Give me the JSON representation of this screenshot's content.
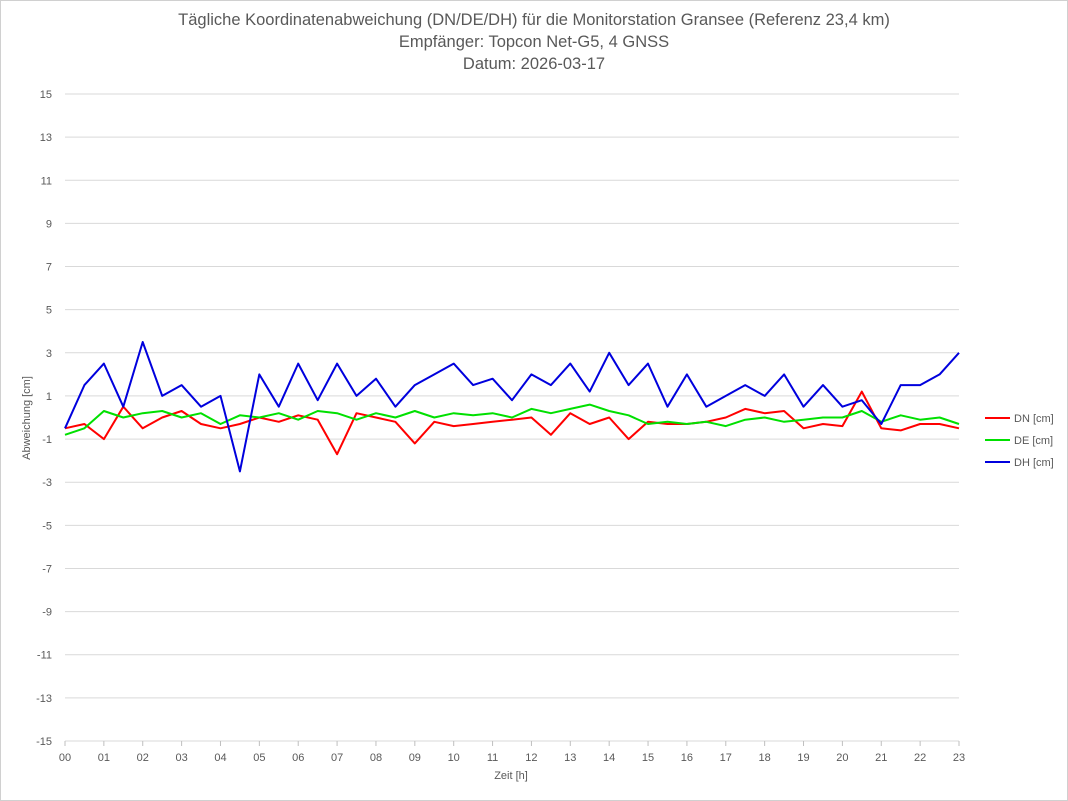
{
  "chart_data": {
    "type": "line",
    "title": "Tägliche Koordinatenabweichung (DN/DE/DH) für die Monitorstation Gransee (Referenz 23,4 km)",
    "subtitle1": "Empfänger: Topcon Net-G5, 4 GNSS",
    "subtitle2": "Datum: 2026-03-17",
    "xlabel": "Zeit [h]",
    "ylabel": "Abweichung [cm]",
    "xlim": [
      0,
      23
    ],
    "ylim": [
      -15,
      15
    ],
    "x_ticks": [
      "00",
      "01",
      "02",
      "03",
      "04",
      "05",
      "06",
      "07",
      "08",
      "09",
      "10",
      "11",
      "12",
      "13",
      "14",
      "15",
      "16",
      "17",
      "18",
      "19",
      "20",
      "21",
      "22",
      "23"
    ],
    "y_ticks": [
      15,
      13,
      11,
      9,
      7,
      5,
      3,
      1,
      -1,
      -3,
      -5,
      -7,
      -9,
      -11,
      -13,
      -15
    ],
    "legend_position": "right",
    "series": [
      {
        "name": "DN [cm]",
        "color": "#ff0000",
        "x": [
          0,
          0.5,
          1,
          1.5,
          2,
          2.5,
          3,
          3.5,
          4,
          4.5,
          5,
          5.5,
          6,
          6.5,
          7,
          7.5,
          8,
          8.5,
          9,
          9.5,
          10,
          10.5,
          11,
          11.5,
          12,
          12.5,
          13,
          13.5,
          14,
          14.5,
          15,
          15.5,
          16,
          16.5,
          17,
          17.5,
          18,
          18.5,
          19,
          19.5,
          20,
          20.5,
          21,
          21.5,
          22,
          22.5,
          23
        ],
        "values": [
          -0.5,
          -0.3,
          -1.0,
          0.5,
          -0.5,
          0.0,
          0.3,
          -0.3,
          -0.5,
          -0.3,
          0.0,
          -0.2,
          0.1,
          -0.1,
          -1.7,
          0.2,
          0.0,
          -0.2,
          -1.2,
          -0.2,
          -0.4,
          -0.3,
          -0.2,
          -0.1,
          0.0,
          -0.8,
          0.2,
          -0.3,
          0.0,
          -1.0,
          -0.2,
          -0.3,
          -0.3,
          -0.2,
          0.0,
          0.4,
          0.2,
          0.3,
          -0.5,
          -0.3,
          -0.4,
          1.2,
          -0.5,
          -0.6,
          -0.3,
          -0.3,
          -0.5
        ]
      },
      {
        "name": "DE [cm]",
        "color": "#00e000",
        "x": [
          0,
          0.5,
          1,
          1.5,
          2,
          2.5,
          3,
          3.5,
          4,
          4.5,
          5,
          5.5,
          6,
          6.5,
          7,
          7.5,
          8,
          8.5,
          9,
          9.5,
          10,
          10.5,
          11,
          11.5,
          12,
          12.5,
          13,
          13.5,
          14,
          14.5,
          15,
          15.5,
          16,
          16.5,
          17,
          17.5,
          18,
          18.5,
          19,
          19.5,
          20,
          20.5,
          21,
          21.5,
          22,
          22.5,
          23
        ],
        "values": [
          -0.8,
          -0.5,
          0.3,
          0.0,
          0.2,
          0.3,
          0.0,
          0.2,
          -0.3,
          0.1,
          0.0,
          0.2,
          -0.1,
          0.3,
          0.2,
          -0.1,
          0.2,
          0.0,
          0.3,
          0.0,
          0.2,
          0.1,
          0.2,
          0.0,
          0.4,
          0.2,
          0.4,
          0.6,
          0.3,
          0.1,
          -0.3,
          -0.2,
          -0.3,
          -0.2,
          -0.4,
          -0.1,
          0.0,
          -0.2,
          -0.1,
          0.0,
          0.0,
          0.3,
          -0.2,
          0.1,
          -0.1,
          0.0,
          -0.3
        ]
      },
      {
        "name": "DH [cm]",
        "color": "#0000dd",
        "x": [
          0,
          0.5,
          1,
          1.5,
          2,
          2.5,
          3,
          3.5,
          4,
          4.5,
          5,
          5.5,
          6,
          6.5,
          7,
          7.5,
          8,
          8.5,
          9,
          9.5,
          10,
          10.5,
          11,
          11.5,
          12,
          12.5,
          13,
          13.5,
          14,
          14.5,
          15,
          15.5,
          16,
          16.5,
          17,
          17.5,
          18,
          18.5,
          19,
          19.5,
          20,
          20.5,
          21,
          21.5,
          22,
          22.5,
          23
        ],
        "values": [
          -0.5,
          1.5,
          2.5,
          0.5,
          3.5,
          1.0,
          1.5,
          0.5,
          1.0,
          -2.5,
          2.0,
          0.5,
          2.5,
          0.8,
          2.5,
          1.0,
          1.8,
          0.5,
          1.5,
          2.0,
          2.5,
          1.5,
          1.8,
          0.8,
          2.0,
          1.5,
          2.5,
          1.2,
          3.0,
          1.5,
          2.5,
          0.5,
          2.0,
          0.5,
          1.0,
          1.5,
          1.0,
          2.0,
          0.5,
          1.5,
          0.5,
          0.8,
          -0.3,
          1.5,
          1.5,
          2.0,
          3.0
        ]
      }
    ]
  }
}
